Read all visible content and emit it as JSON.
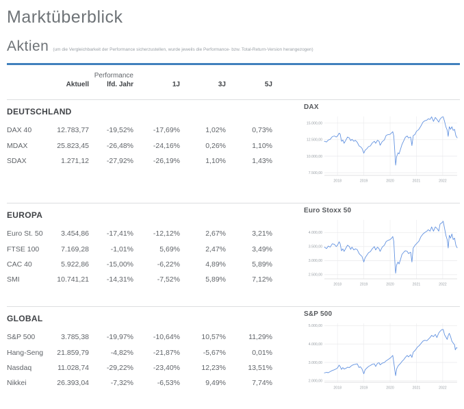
{
  "page": {
    "title": "Marktüberblick",
    "section_title": "Aktien",
    "section_note": "(um die Vergleichbarkeit der Performance sicherzustellen, wurde jeweils die Performance- bzw. Total-Return-Version herangezogen)",
    "accent_color": "#4180bd"
  },
  "table": {
    "performance_label": "Performance",
    "columns": [
      "Aktuell",
      "lfd. Jahr",
      "1J",
      "3J",
      "5J"
    ],
    "sections": [
      {
        "title": "DEUTSCHLAND",
        "rows": [
          {
            "name": "DAX 40",
            "values": [
              "12.783,77",
              "-19,52%",
              "-17,69%",
              "1,02%",
              "0,73%"
            ]
          },
          {
            "name": "MDAX",
            "values": [
              "25.823,45",
              "-26,48%",
              "-24,16%",
              "0,26%",
              "1,10%"
            ]
          },
          {
            "name": "SDAX",
            "values": [
              "1.271,12",
              "-27,92%",
              "-26,19%",
              "1,10%",
              "1,43%"
            ]
          }
        ]
      },
      {
        "title": "EUROPA",
        "rows": [
          {
            "name": "Euro St. 50",
            "values": [
              "3.454,86",
              "-17,41%",
              "-12,12%",
              "2,67%",
              "3,21%"
            ]
          },
          {
            "name": "FTSE 100",
            "values": [
              "7.169,28",
              "-1,01%",
              "5,69%",
              "2,47%",
              "3,49%"
            ]
          },
          {
            "name": "CAC 40",
            "values": [
              "5.922,86",
              "-15,00%",
              "-6,22%",
              "4,89%",
              "5,89%"
            ]
          },
          {
            "name": "SMI",
            "values": [
              "10.741,21",
              "-14,31%",
              "-7,52%",
              "5,89%",
              "7,12%"
            ]
          }
        ]
      },
      {
        "title": "GLOBAL",
        "rows": [
          {
            "name": "S&P 500",
            "values": [
              "3.785,38",
              "-19,97%",
              "-10,64%",
              "10,57%",
              "11,29%"
            ]
          },
          {
            "name": "Hang-Seng",
            "values": [
              "21.859,79",
              "-4,82%",
              "-21,87%",
              "-5,67%",
              "0,01%"
            ]
          },
          {
            "name": "Nasdaq",
            "values": [
              "11.028,74",
              "-29,22%",
              "-23,40%",
              "12,23%",
              "13,51%"
            ]
          },
          {
            "name": "Nikkei",
            "values": [
              "26.393,04",
              "-7,32%",
              "-6,53%",
              "9,49%",
              "7,74%"
            ]
          }
        ]
      }
    ]
  },
  "chart_data": [
    {
      "type": "line",
      "name": "dax",
      "title": "DAX",
      "line_color": "#6292e0",
      "grid": true,
      "legend": false,
      "xlim": [
        2017.5,
        2022.55
      ],
      "ylim": [
        7100,
        16000
      ],
      "ygrid": [
        7500,
        10000,
        12500,
        15000
      ],
      "ytick_labels": [
        "7.500,00",
        "10.000,00",
        "12.500,00",
        "15.000,00"
      ],
      "xticks": [
        2018,
        2019,
        2020,
        2021,
        2022
      ],
      "xtick_labels": [
        "2018",
        "2019",
        "2020",
        "2021",
        "2022"
      ],
      "x": [
        2017.5,
        2017.58,
        2017.65,
        2017.72,
        2017.8,
        2017.88,
        2017.95,
        2018.0,
        2018.06,
        2018.1,
        2018.15,
        2018.2,
        2018.25,
        2018.32,
        2018.38,
        2018.45,
        2018.5,
        2018.55,
        2018.62,
        2018.68,
        2018.75,
        2018.82,
        2018.87,
        2018.93,
        2019.0,
        2019.05,
        2019.12,
        2019.18,
        2019.25,
        2019.32,
        2019.4,
        2019.45,
        2019.52,
        2019.58,
        2019.62,
        2019.7,
        2019.78,
        2019.85,
        2019.92,
        2020.0,
        2020.05,
        2020.1,
        2020.14,
        2020.18,
        2020.21,
        2020.25,
        2020.3,
        2020.34,
        2020.4,
        2020.45,
        2020.52,
        2020.58,
        2020.65,
        2020.7,
        2020.78,
        2020.83,
        2020.88,
        2020.95,
        2021.0,
        2021.05,
        2021.1,
        2021.17,
        2021.25,
        2021.32,
        2021.4,
        2021.45,
        2021.52,
        2021.58,
        2021.65,
        2021.72,
        2021.78,
        2021.85,
        2021.9,
        2021.97,
        2022.02,
        2022.07,
        2022.12,
        2022.17,
        2022.21,
        2022.25,
        2022.3,
        2022.35,
        2022.4,
        2022.45,
        2022.5,
        2022.55
      ],
      "values": [
        12250,
        12150,
        12450,
        12550,
        12950,
        13050,
        12900,
        13050,
        13480,
        13350,
        12250,
        12450,
        11950,
        12450,
        12900,
        12750,
        12350,
        12550,
        12250,
        12400,
        12100,
        11550,
        11450,
        11200,
        10450,
        10900,
        11150,
        11450,
        11550,
        12000,
        12250,
        11950,
        12400,
        12250,
        11650,
        12200,
        12450,
        13150,
        13250,
        13300,
        13500,
        13700,
        13050,
        10500,
        8650,
        9950,
        10500,
        10350,
        11100,
        11750,
        12350,
        12850,
        13050,
        12750,
        12900,
        11600,
        13100,
        13300,
        13750,
        13900,
        14100,
        14550,
        15150,
        15350,
        15450,
        15650,
        15550,
        15950,
        15250,
        15850,
        15550,
        15150,
        15600,
        15900,
        15950,
        15250,
        14450,
        13950,
        13000,
        14450,
        14050,
        14450,
        13900,
        14050,
        13100,
        12784
      ]
    },
    {
      "type": "line",
      "name": "euro-stoxx-50",
      "title": "Euro Stoxx 50",
      "line_color": "#6292e0",
      "grid": true,
      "legend": false,
      "xlim": [
        2017.5,
        2022.55
      ],
      "ylim": [
        2350,
        4450
      ],
      "ygrid": [
        2500,
        3000,
        3500,
        4000
      ],
      "ytick_labels": [
        "2.500,00",
        "3.000,00",
        "3.500,00",
        "4.000,00"
      ],
      "xticks": [
        2018,
        2019,
        2020,
        2021,
        2022
      ],
      "xtick_labels": [
        "2018",
        "2019",
        "2020",
        "2021",
        "2022"
      ],
      "x": [
        2017.5,
        2017.58,
        2017.65,
        2017.72,
        2017.8,
        2017.88,
        2017.95,
        2018.0,
        2018.06,
        2018.1,
        2018.15,
        2018.2,
        2018.25,
        2018.32,
        2018.38,
        2018.45,
        2018.5,
        2018.55,
        2018.62,
        2018.68,
        2018.75,
        2018.82,
        2018.87,
        2018.93,
        2019.0,
        2019.05,
        2019.12,
        2019.18,
        2019.25,
        2019.32,
        2019.4,
        2019.45,
        2019.52,
        2019.58,
        2019.62,
        2019.7,
        2019.78,
        2019.85,
        2019.92,
        2020.0,
        2020.05,
        2020.1,
        2020.14,
        2020.18,
        2020.21,
        2020.25,
        2020.3,
        2020.34,
        2020.4,
        2020.45,
        2020.52,
        2020.58,
        2020.65,
        2020.7,
        2020.78,
        2020.83,
        2020.88,
        2020.95,
        2021.0,
        2021.05,
        2021.1,
        2021.17,
        2021.25,
        2021.32,
        2021.4,
        2021.45,
        2021.52,
        2021.58,
        2021.65,
        2021.72,
        2021.78,
        2021.85,
        2021.9,
        2021.97,
        2022.02,
        2022.07,
        2022.12,
        2022.17,
        2022.21,
        2022.25,
        2022.3,
        2022.35,
        2022.4,
        2022.45,
        2022.5,
        2022.55
      ],
      "values": [
        3480,
        3430,
        3520,
        3480,
        3600,
        3580,
        3500,
        3550,
        3670,
        3600,
        3350,
        3420,
        3330,
        3450,
        3550,
        3500,
        3400,
        3480,
        3380,
        3420,
        3390,
        3250,
        3200,
        3150,
        2950,
        3100,
        3200,
        3280,
        3320,
        3420,
        3500,
        3380,
        3480,
        3420,
        3330,
        3480,
        3550,
        3680,
        3720,
        3750,
        3790,
        3860,
        3680,
        2950,
        2550,
        2850,
        2950,
        2880,
        3050,
        3220,
        3300,
        3350,
        3330,
        3250,
        3300,
        2950,
        3450,
        3550,
        3600,
        3650,
        3700,
        3850,
        3950,
        4000,
        4050,
        4100,
        4050,
        4200,
        4050,
        4200,
        4150,
        4050,
        4300,
        4350,
        4400,
        4150,
        3900,
        3750,
        3450,
        3900,
        3800,
        3950,
        3750,
        3800,
        3550,
        3455
      ]
    },
    {
      "type": "line",
      "name": "sp-500",
      "title": "S&P 500",
      "line_color": "#6292e0",
      "grid": true,
      "legend": false,
      "xlim": [
        2017.5,
        2022.55
      ],
      "ylim": [
        1920,
        5120
      ],
      "ygrid": [
        2000,
        3000,
        4000,
        5000
      ],
      "ytick_labels": [
        "2.000,00",
        "3.000,00",
        "4.000,00",
        "5.000,00"
      ],
      "xticks": [
        2018,
        2019,
        2020,
        2021,
        2022
      ],
      "xtick_labels": [
        "2018",
        "2019",
        "2020",
        "2021",
        "2022"
      ],
      "x": [
        2017.5,
        2017.58,
        2017.65,
        2017.72,
        2017.8,
        2017.88,
        2017.95,
        2018.0,
        2018.06,
        2018.1,
        2018.15,
        2018.2,
        2018.25,
        2018.32,
        2018.38,
        2018.45,
        2018.5,
        2018.55,
        2018.62,
        2018.68,
        2018.75,
        2018.82,
        2018.87,
        2018.93,
        2019.0,
        2019.05,
        2019.12,
        2019.18,
        2019.25,
        2019.32,
        2019.4,
        2019.45,
        2019.52,
        2019.58,
        2019.62,
        2019.7,
        2019.78,
        2019.85,
        2019.92,
        2020.0,
        2020.05,
        2020.1,
        2020.14,
        2020.18,
        2020.21,
        2020.25,
        2020.3,
        2020.34,
        2020.4,
        2020.45,
        2020.52,
        2020.58,
        2020.65,
        2020.7,
        2020.78,
        2020.83,
        2020.88,
        2020.95,
        2021.0,
        2021.05,
        2021.1,
        2021.17,
        2021.25,
        2021.32,
        2021.4,
        2021.45,
        2021.52,
        2021.58,
        2021.65,
        2021.72,
        2021.78,
        2021.85,
        2021.9,
        2021.97,
        2022.02,
        2022.07,
        2022.12,
        2022.17,
        2022.21,
        2022.25,
        2022.3,
        2022.35,
        2022.4,
        2022.45,
        2022.48,
        2022.52,
        2022.55
      ],
      "values": [
        2430,
        2460,
        2440,
        2500,
        2560,
        2600,
        2650,
        2700,
        2850,
        2780,
        2620,
        2720,
        2640,
        2680,
        2740,
        2720,
        2780,
        2840,
        2880,
        2900,
        2920,
        2720,
        2760,
        2650,
        2380,
        2600,
        2700,
        2780,
        2830,
        2900,
        2920,
        2780,
        2950,
        2980,
        2870,
        2960,
        2990,
        3090,
        3150,
        3230,
        3300,
        3380,
        3000,
        2550,
        2280,
        2650,
        2800,
        2870,
        2950,
        3050,
        3150,
        3270,
        3380,
        3300,
        3420,
        3270,
        3550,
        3650,
        3750,
        3850,
        3900,
        4020,
        4160,
        4200,
        4180,
        4250,
        4350,
        4470,
        4400,
        4520,
        4350,
        4600,
        4690,
        4780,
        4790,
        4500,
        4380,
        4250,
        4450,
        4580,
        4400,
        4150,
        4050,
        3950,
        3680,
        3800,
        3785
      ]
    }
  ]
}
